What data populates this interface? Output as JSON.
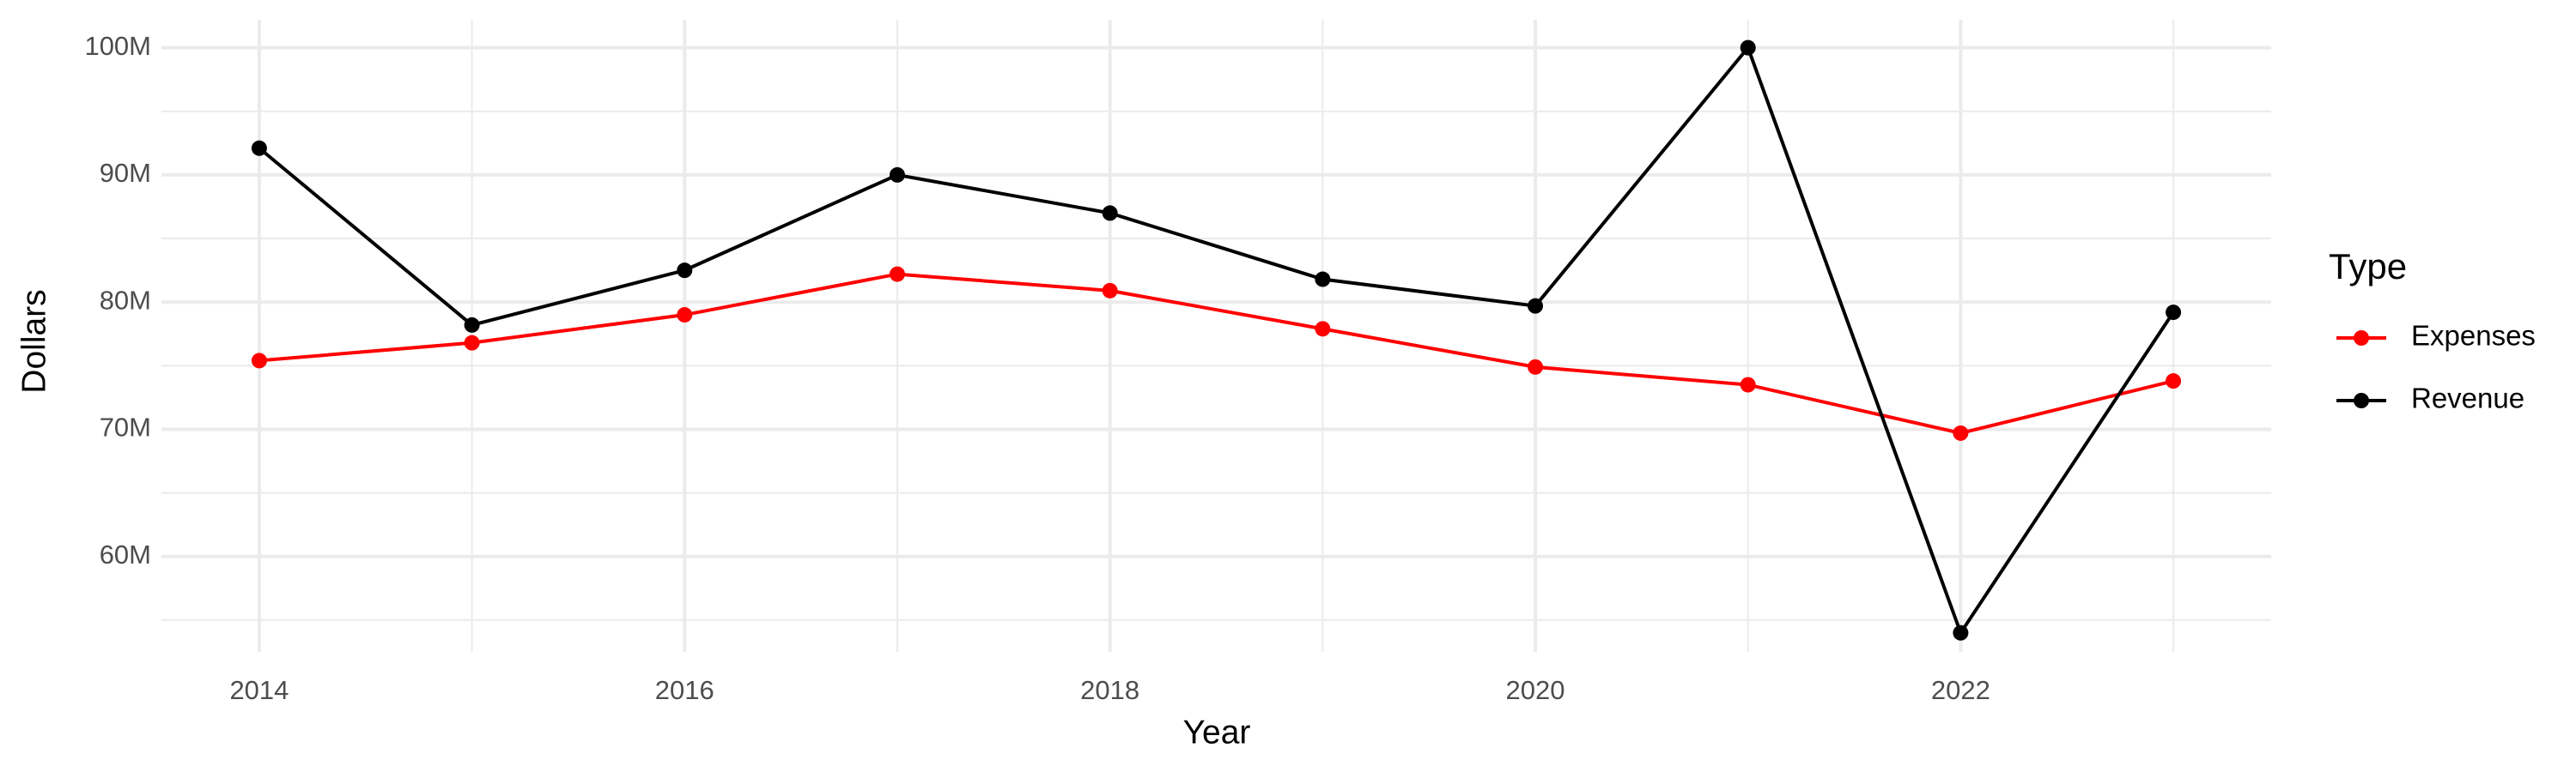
{
  "chart_data": {
    "type": "line",
    "x_label": "Year",
    "y_label": "Dollars",
    "legend_title": "Type",
    "legend_position": "right",
    "grid": true,
    "x": [
      2014,
      2015,
      2016,
      2017,
      2018,
      2019,
      2020,
      2021,
      2022,
      2023
    ],
    "series": [
      {
        "name": "Expenses",
        "color": "#ff0000",
        "values": [
          75400000,
          76800000,
          79000000,
          82200000,
          80900000,
          77900000,
          74900000,
          73500000,
          69700000,
          73800000
        ]
      },
      {
        "name": "Revenue",
        "color": "#000000",
        "values": [
          92100000,
          78200000,
          82500000,
          90000000,
          87000000,
          81800000,
          79700000,
          100000000,
          54000000,
          79200000
        ]
      }
    ],
    "xlim": [
      2013.54,
      2023.46
    ],
    "xticks": [
      2014,
      2016,
      2018,
      2020,
      2022
    ],
    "ylim": [
      52500000,
      102200000
    ],
    "yticks": [
      {
        "value": 60000000,
        "label": "60M"
      },
      {
        "value": 70000000,
        "label": "70M"
      },
      {
        "value": 80000000,
        "label": "80M"
      },
      {
        "value": 90000000,
        "label": "90M"
      },
      {
        "value": 100000000,
        "label": "100M"
      }
    ]
  }
}
